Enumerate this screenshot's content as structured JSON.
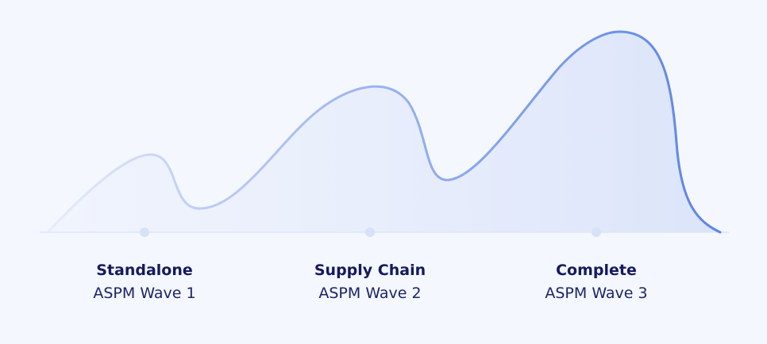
{
  "stages": [
    {
      "title": "Standalone",
      "subtitle": "ASPM Wave 1"
    },
    {
      "title": "Supply Chain",
      "subtitle": "ASPM Wave 2"
    },
    {
      "title": "Complete",
      "subtitle": "ASPM Wave 3"
    }
  ]
}
